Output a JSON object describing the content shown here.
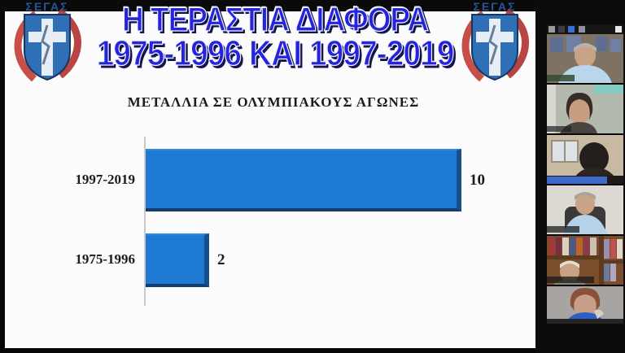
{
  "slide": {
    "title_line1": "Η ΤΕΡΑΣΤΙΑ ΔΙΑΦΟΡΑ",
    "title_line2": "1975-1996 ΚΑΙ 1997-2019",
    "title_color": "#2424dc",
    "logo_text": "ΣΕΓΑΣ"
  },
  "chart_data": {
    "type": "bar",
    "orientation": "horizontal",
    "title": "ΜΕΤΑΛΛΙΑ ΣΕ ΟΛΥΜΠΙΑΚΟΥΣ ΑΓΩΝΕΣ",
    "categories": [
      "1997-2019",
      "1975-1996"
    ],
    "values": [
      10,
      2
    ],
    "data_labels": [
      "10",
      "2"
    ],
    "xlim": [
      0,
      10
    ],
    "bar_color": "#1e79d2",
    "grid": false,
    "legend": false
  },
  "video_panel": {
    "participant_count": 6,
    "participants": [
      {
        "scene": "man-gray-hair-light-blue-shirt-picture-frames"
      },
      {
        "scene": "woman-dark-hair-glasses-flipchart"
      },
      {
        "scene": "backlit-silhouette-window"
      },
      {
        "scene": "man-gray-hair-blue-shirt-office-chair"
      },
      {
        "scene": "man-white-hair-bookshelf"
      },
      {
        "scene": "person-auburn-hair-blue-top"
      }
    ]
  }
}
